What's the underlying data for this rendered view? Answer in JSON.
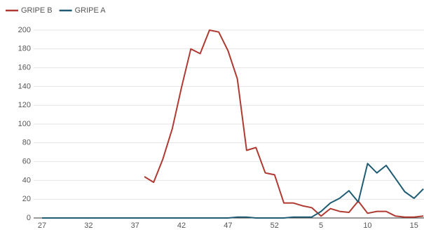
{
  "chart_data": {
    "type": "line",
    "categories": [
      27,
      null,
      null,
      null,
      null,
      32,
      null,
      null,
      null,
      null,
      37,
      null,
      null,
      null,
      null,
      42,
      null,
      null,
      null,
      null,
      47,
      null,
      null,
      null,
      null,
      52,
      null,
      null,
      null,
      null,
      5,
      null,
      null,
      null,
      null,
      10,
      null,
      null,
      null,
      null,
      15,
      null
    ],
    "series": [
      {
        "name": "GRIPE B",
        "color": "#b03a32",
        "values": [
          null,
          null,
          null,
          null,
          null,
          null,
          null,
          null,
          null,
          null,
          null,
          44,
          38,
          63,
          95,
          139,
          180,
          175,
          200,
          198,
          178,
          148,
          72,
          75,
          48,
          46,
          16,
          16,
          13,
          11,
          2,
          10,
          7,
          6,
          18,
          5,
          7,
          7,
          2,
          1,
          1,
          2
        ]
      },
      {
        "name": "GRIPE A",
        "color": "#1f5c73",
        "values": [
          0,
          0,
          0,
          0,
          0,
          0,
          0,
          0,
          0,
          0,
          0,
          0,
          0,
          0,
          0,
          0,
          0,
          0,
          0,
          0,
          0,
          1,
          1,
          0,
          0,
          0,
          0,
          1,
          1,
          1,
          7,
          16,
          21,
          29,
          17,
          58,
          48,
          56,
          42,
          28,
          21,
          31
        ]
      }
    ],
    "ylim": [
      0,
      200
    ],
    "yticks": [
      0,
      20,
      40,
      60,
      80,
      100,
      120,
      140,
      160,
      180,
      200
    ],
    "grid": true,
    "legend": "top-left"
  }
}
